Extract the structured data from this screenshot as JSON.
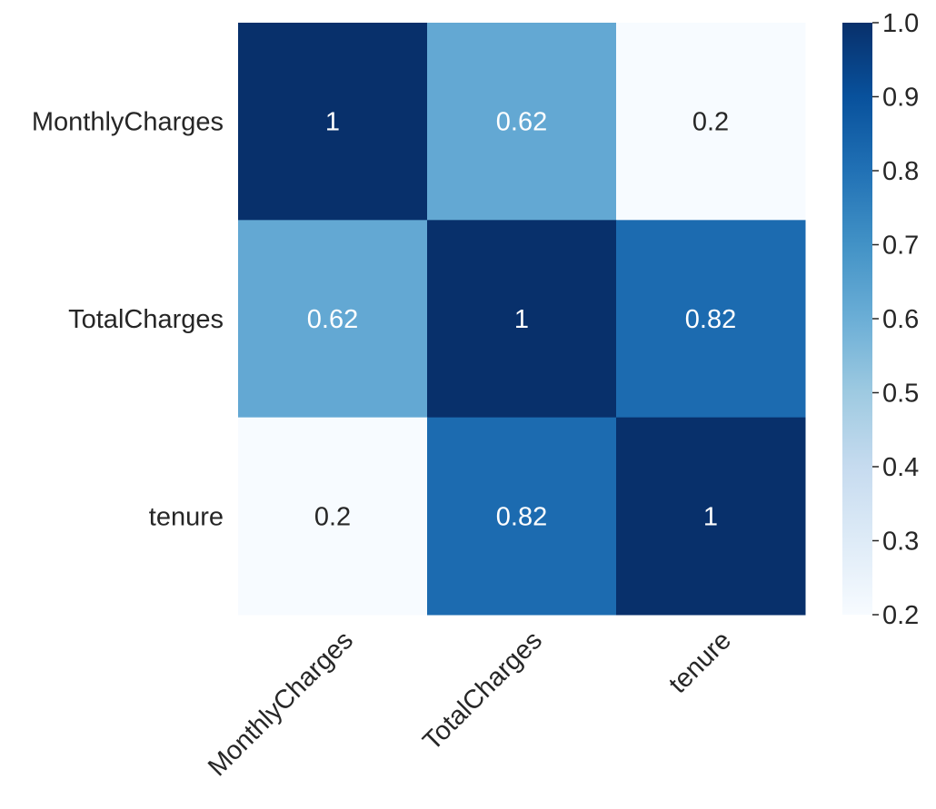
{
  "chart_data": {
    "type": "heatmap",
    "title": "",
    "xlabel": "",
    "ylabel": "",
    "x_categories": [
      "MonthlyCharges",
      "TotalCharges",
      "tenure"
    ],
    "y_categories": [
      "MonthlyCharges",
      "TotalCharges",
      "tenure"
    ],
    "values": [
      [
        1,
        0.62,
        0.2
      ],
      [
        0.62,
        1,
        0.82
      ],
      [
        0.2,
        0.82,
        1
      ]
    ],
    "annotations": [
      [
        "1",
        "0.62",
        "0.2"
      ],
      [
        "0.62",
        "1",
        "0.82"
      ],
      [
        "0.2",
        "0.82",
        "1"
      ]
    ],
    "colormap": "Blues",
    "colorbar": {
      "range": [
        0.2,
        1.0
      ],
      "ticks": [
        0.2,
        0.3,
        0.4,
        0.5,
        0.6,
        0.7,
        0.8,
        0.9,
        1.0
      ],
      "tick_labels": [
        "0.2",
        "0.3",
        "0.4",
        "0.5",
        "0.6",
        "0.7",
        "0.8",
        "0.9",
        "1.0"
      ]
    },
    "colors": {
      "min": "#f7fbff",
      "max": "#08306b",
      "text_dark": "#262626",
      "text_light": "#ffffff"
    }
  }
}
